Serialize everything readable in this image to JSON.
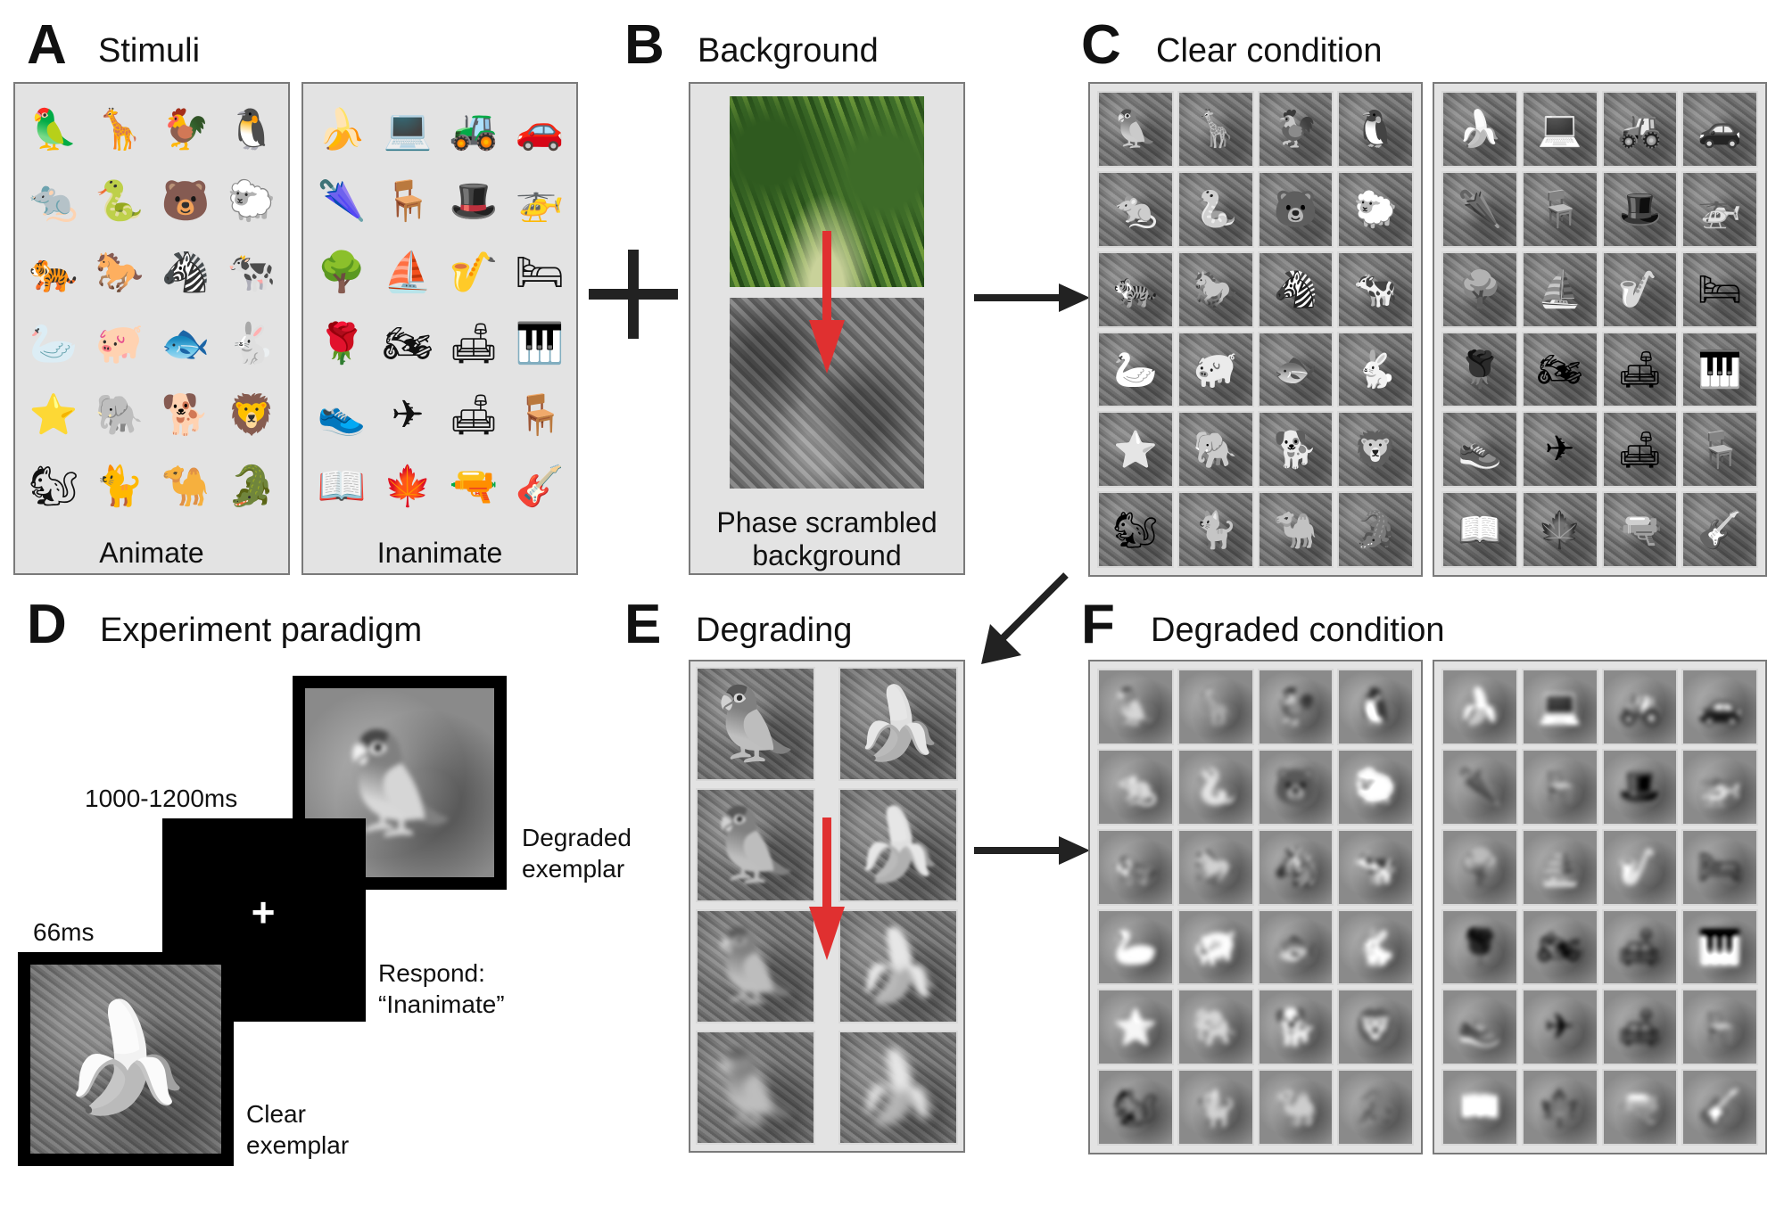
{
  "panels": {
    "A": {
      "letter": "A",
      "title": "Stimuli",
      "animate_label": "Animate",
      "inanimate_label": "Inanimate"
    },
    "B": {
      "letter": "B",
      "title": "Background",
      "caption_line1": "Phase scrambled",
      "caption_line2": "background"
    },
    "C": {
      "letter": "C",
      "title": "Clear condition"
    },
    "D": {
      "letter": "D",
      "title": "Experiment paradigm",
      "timing_interval": "1000-1200ms",
      "timing_stimulus": "66ms",
      "degraded_line1": "Degraded",
      "degraded_line2": "exemplar",
      "respond_line1": "Respond:",
      "respond_line2": "“Inanimate”",
      "clear_line1": "Clear",
      "clear_line2": "exemplar",
      "fixation": "+"
    },
    "E": {
      "letter": "E",
      "title": "Degrading"
    },
    "F": {
      "letter": "F",
      "title": "Degraded condition"
    }
  },
  "plus_sign": "+",
  "animate_icons": [
    "🦜",
    "🦒",
    "🐓",
    "🐧",
    "🐀",
    "🐍",
    "🐻",
    "🐑",
    "🐅",
    "🐎",
    "🦓",
    "🐄",
    "🦢",
    "🐖",
    "🐟",
    "🐇",
    "⭐",
    "🐘",
    "🐕",
    "🦁",
    "🐿",
    "🐈",
    "🐪",
    "🐊"
  ],
  "inanimate_icons": [
    "🍌",
    "💻",
    "🚜",
    "🚗",
    "🌂",
    "🪑",
    "🎩",
    "🚁",
    "🌳",
    "⛵",
    "🎷",
    "🛏",
    "🌹",
    "🏍",
    "🛋",
    "🎹",
    "👟",
    "✈",
    "🛋",
    "🪑",
    "📖",
    "🍁",
    "🔫",
    "🎸"
  ]
}
